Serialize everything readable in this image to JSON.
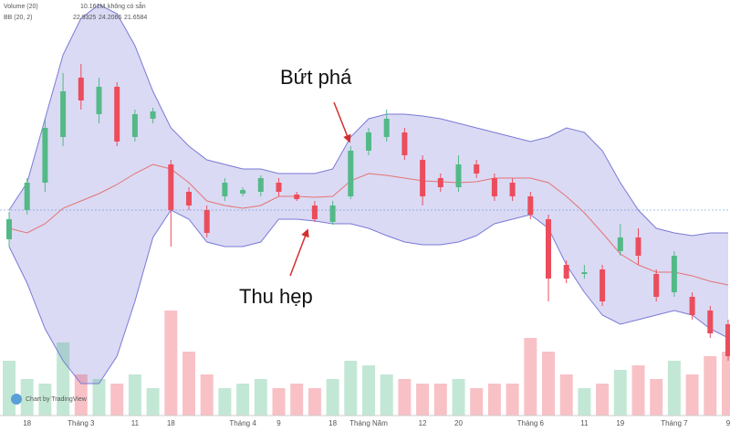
{
  "chart_data": {
    "type": "candlestick",
    "legend": {
      "volume_name": "Volume (20)",
      "volume_value": "10.161M",
      "volume_note": "không có sẵn",
      "bb_name": "BB (20, 2)",
      "bb_middle": "22.9325",
      "bb_upper": "24.2066",
      "bb_lower": "21.6584"
    },
    "annotations": [
      "Bứt phá",
      "Thu hẹp"
    ],
    "credit": "Chart by TradingView",
    "categories": [
      null,
      "18",
      null,
      null,
      "Tháng 3",
      null,
      null,
      "11",
      null,
      "18",
      null,
      null,
      null,
      "Tháng 4",
      null,
      "9",
      null,
      null,
      "18",
      null,
      "Tháng Năm",
      null,
      null,
      "12",
      null,
      "20",
      null,
      null,
      null,
      "Tháng 6",
      null,
      null,
      "11",
      null,
      "19",
      null,
      null,
      "Tháng 7",
      null,
      null,
      "9"
    ],
    "open": [
      143,
      175,
      205,
      255,
      320,
      280,
      310,
      255,
      275,
      225,
      195,
      175,
      190,
      193,
      195,
      205,
      192,
      180,
      162,
      190,
      240,
      255,
      260,
      230,
      210,
      200,
      225,
      210,
      205,
      190,
      165,
      115,
      105,
      110,
      130,
      145,
      105,
      85,
      80,
      65,
      50
    ],
    "high": [
      173,
      210,
      275,
      325,
      335,
      320,
      315,
      285,
      287,
      230,
      200,
      180,
      210,
      200,
      213,
      210,
      195,
      185,
      185,
      245,
      265,
      285,
      265,
      235,
      215,
      235,
      230,
      215,
      210,
      195,
      170,
      120,
      115,
      115,
      160,
      155,
      110,
      130,
      85,
      70,
      55
    ],
    "low": [
      135,
      170,
      195,
      245,
      285,
      270,
      245,
      250,
      270,
      135,
      175,
      145,
      185,
      190,
      190,
      190,
      185,
      162,
      159,
      187,
      235,
      250,
      230,
      180,
      195,
      195,
      210,
      185,
      185,
      165,
      75,
      95,
      100,
      70,
      125,
      115,
      75,
      80,
      55,
      35,
      10
    ],
    "close": [
      165,
      205,
      265,
      305,
      295,
      310,
      250,
      280,
      283,
      175,
      180,
      150,
      205,
      197,
      210,
      195,
      187,
      165,
      180,
      240,
      260,
      275,
      235,
      190,
      200,
      225,
      215,
      190,
      190,
      170,
      100,
      100,
      107,
      75,
      145,
      125,
      80,
      125,
      60,
      40,
      15
    ],
    "bb_upper": [
      175,
      205,
      275,
      345,
      385,
      400,
      390,
      355,
      305,
      265,
      245,
      230,
      225,
      220,
      220,
      215,
      215,
      215,
      220,
      255,
      275,
      280,
      280,
      278,
      275,
      270,
      265,
      260,
      255,
      250,
      255,
      265,
      260,
      240,
      205,
      175,
      155,
      150,
      147,
      150,
      150
    ],
    "bb_middle": [
      155,
      150,
      160,
      177,
      185,
      193,
      203,
      215,
      225,
      220,
      205,
      185,
      180,
      177,
      180,
      190,
      190,
      189,
      190,
      207,
      215,
      213,
      210,
      207,
      206,
      205,
      206,
      210,
      210,
      210,
      205,
      190,
      172,
      150,
      127,
      115,
      107,
      107,
      103,
      97,
      93
    ],
    "bb_lower": [
      135,
      95,
      45,
      10,
      -15,
      -15,
      15,
      75,
      145,
      175,
      165,
      140,
      135,
      135,
      140,
      165,
      165,
      163,
      160,
      160,
      155,
      147,
      140,
      137,
      137,
      140,
      147,
      160,
      165,
      170,
      155,
      115,
      85,
      60,
      50,
      55,
      60,
      65,
      60,
      45,
      35
    ],
    "volume": [
      60,
      40,
      35,
      80,
      45,
      40,
      35,
      45,
      30,
      115,
      70,
      45,
      30,
      35,
      40,
      30,
      35,
      30,
      40,
      60,
      55,
      45,
      40,
      35,
      35,
      40,
      30,
      35,
      35,
      85,
      70,
      45,
      30,
      35,
      50,
      55,
      40,
      60,
      45,
      65,
      70
    ],
    "ylim": [
      -50,
      405
    ],
    "volume_ylim": [
      0,
      150
    ],
    "up_color": "#53b987",
    "down_color": "#eb4d5c",
    "band_color": "#7a7ad6",
    "middle_color": "#e57373"
  }
}
